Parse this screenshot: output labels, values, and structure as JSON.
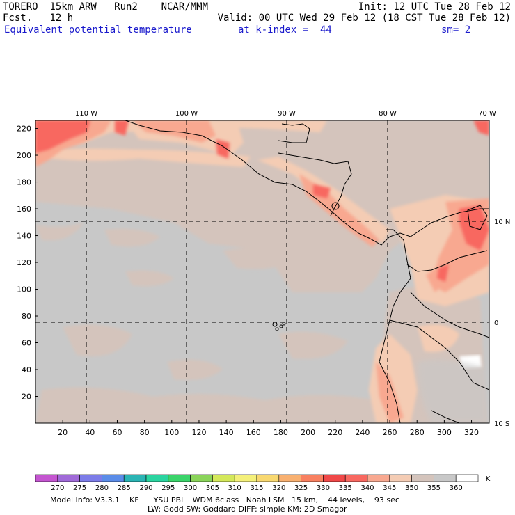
{
  "header": {
    "model": "TORERO  15km ARW   Run2    NCAR/MMM",
    "init": "Init: 12 UTC Tue 28 Feb 12",
    "fcst": "Fcst.   12 h",
    "valid": "Valid: 00 UTC Wed 29 Feb 12 (18 CST Tue 28 Feb 12)",
    "field": "Equivalent potential temperature",
    "level": "at k-index =  44",
    "smoothing": "sm= 2"
  },
  "footer": {
    "line1": "Model Info: V3.3.1    KF      YSU PBL   WDM 6class   Noah LSM   15 km,    44 levels,    93 sec",
    "line2": "LW: Godd SW: Goddard DIFF: simple KM: 2D Smagor"
  },
  "colors": {
    "background_field": "#c8c8c8",
    "frame": "#000000",
    "grid_dash": "#000000",
    "header_blue": "#1a1acc"
  },
  "chart_data": {
    "type": "heatmap",
    "title": "Equivalent potential temperature",
    "x_ticks": [
      "20",
      "40",
      "60",
      "80",
      "100",
      "120",
      "140",
      "160",
      "180",
      "200",
      "220",
      "240",
      "260",
      "280",
      "300",
      "320"
    ],
    "y_ticks": [
      "20",
      "40",
      "60",
      "80",
      "100",
      "120",
      "140",
      "160",
      "180",
      "200",
      "220"
    ],
    "xlim": [
      0,
      333
    ],
    "ylim": [
      0,
      226
    ],
    "lon_labels": [
      "110 W",
      "100 W",
      "90 W",
      "80 W",
      "70 W"
    ],
    "lon_values": [
      -110,
      -100,
      -90,
      -80,
      -70
    ],
    "lat_labels": [
      "10 N",
      "0",
      "10 S"
    ],
    "lat_values": [
      10,
      0,
      -10
    ],
    "colorbar": {
      "unit": "K",
      "labels": [
        "270",
        "275",
        "280",
        "285",
        "290",
        "295",
        "300",
        "305",
        "310",
        "315",
        "320",
        "325",
        "330",
        "335",
        "340",
        "345",
        "350",
        "355",
        "360"
      ],
      "colors": [
        "#c455d0",
        "#a06ad8",
        "#7c7ce8",
        "#5a8ce8",
        "#2ab4b4",
        "#2ad4a0",
        "#3ad46a",
        "#8ad45a",
        "#d4e85a",
        "#f4f07a",
        "#f8d870",
        "#f8b070",
        "#f88060",
        "#f04848",
        "#f86860",
        "#f8a890",
        "#f4ccb4",
        "#d4c4bc",
        "#c8c8c8",
        "#ffffff"
      ]
    }
  }
}
